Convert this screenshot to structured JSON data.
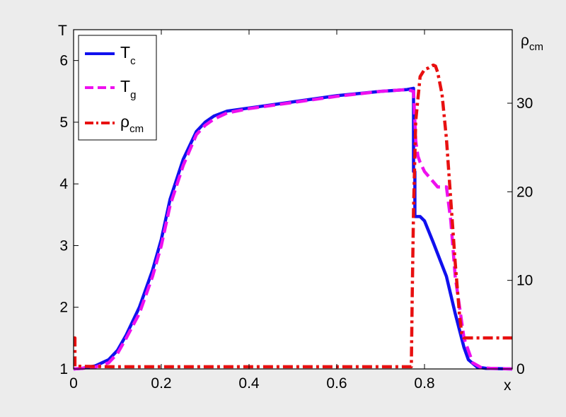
{
  "chart_data": {
    "type": "line",
    "xlabel": "x",
    "ylabel": "T",
    "y2label": {
      "base": "ρ",
      "sub": "cm"
    },
    "xlim": [
      0,
      1
    ],
    "ylim": [
      1,
      6.5
    ],
    "y2lim": [
      0,
      38.3
    ],
    "grid": false,
    "legend_position": "top-left",
    "x_ticks": [
      "0",
      "0.2",
      "0.4",
      "0.6",
      "0.8"
    ],
    "y_ticks": [
      "1",
      "2",
      "3",
      "4",
      "5",
      "6"
    ],
    "y2_ticks": [
      "0",
      "10",
      "20",
      "30"
    ],
    "series": [
      {
        "name": "T_c",
        "legend": {
          "base": "T",
          "sub": "c"
        },
        "axis": "left",
        "color": "#1010ee",
        "style": "solid",
        "x": [
          0,
          0.02,
          0.05,
          0.08,
          0.1,
          0.12,
          0.15,
          0.18,
          0.2,
          0.22,
          0.25,
          0.28,
          0.3,
          0.32,
          0.35,
          0.4,
          0.5,
          0.6,
          0.7,
          0.76,
          0.775,
          0.775,
          0.778,
          0.778,
          0.79,
          0.8,
          0.82,
          0.85,
          0.87,
          0.89,
          0.9,
          0.92,
          0.94,
          1.0
        ],
        "y": [
          1.0,
          1.01,
          1.05,
          1.15,
          1.3,
          1.55,
          2.0,
          2.6,
          3.1,
          3.75,
          4.4,
          4.85,
          5.0,
          5.1,
          5.18,
          5.23,
          5.33,
          5.43,
          5.5,
          5.53,
          5.55,
          4.2,
          4.2,
          3.47,
          3.47,
          3.4,
          3.05,
          2.5,
          1.9,
          1.35,
          1.15,
          1.03,
          1.01,
          1.0
        ]
      },
      {
        "name": "T_g",
        "legend": {
          "base": "T",
          "sub": "g"
        },
        "axis": "left",
        "color": "#ee10ee",
        "style": "dashed",
        "x": [
          0,
          0.02,
          0.05,
          0.08,
          0.1,
          0.12,
          0.15,
          0.18,
          0.2,
          0.22,
          0.25,
          0.28,
          0.3,
          0.32,
          0.35,
          0.4,
          0.5,
          0.6,
          0.7,
          0.76,
          0.775,
          0.78,
          0.785,
          0.79,
          0.8,
          0.83,
          0.85,
          0.86,
          0.87,
          0.89,
          0.91,
          0.93,
          0.95,
          1.0
        ],
        "y": [
          1.0,
          1.01,
          1.03,
          1.1,
          1.25,
          1.5,
          1.9,
          2.5,
          3.0,
          3.65,
          4.3,
          4.8,
          4.95,
          5.05,
          5.15,
          5.22,
          5.32,
          5.42,
          5.5,
          5.53,
          5.5,
          4.7,
          4.45,
          4.35,
          4.2,
          3.95,
          3.95,
          3.4,
          2.5,
          1.5,
          1.1,
          1.02,
          1.01,
          1.0
        ]
      },
      {
        "name": "ρ_cm",
        "legend": {
          "base": "ρ",
          "sub": "cm"
        },
        "axis": "right",
        "color": "#e81010",
        "style": "dashdot",
        "x": [
          0,
          0.003,
          0.003,
          0.1,
          0.3,
          0.5,
          0.7,
          0.77,
          0.772,
          0.775,
          0.78,
          0.79,
          0.8,
          0.81,
          0.82,
          0.825,
          0.83,
          0.84,
          0.85,
          0.86,
          0.87,
          0.88,
          0.885,
          0.89,
          0.9,
          0.95,
          1.0
        ],
        "y": [
          3.5,
          3.5,
          0.3,
          0.25,
          0.25,
          0.25,
          0.25,
          0.25,
          8.0,
          18.0,
          28.0,
          33.0,
          33.8,
          34.0,
          34.3,
          34.2,
          33.5,
          31.0,
          26.0,
          19.0,
          12.0,
          6.0,
          4.0,
          3.5,
          3.5,
          3.5,
          3.5
        ]
      }
    ]
  }
}
